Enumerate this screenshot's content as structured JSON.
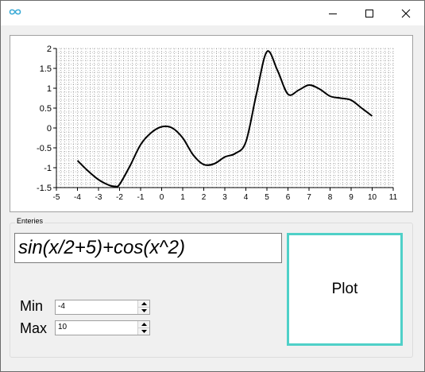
{
  "window": {
    "title": "",
    "icon": "infinity-icon"
  },
  "chart_data": {
    "type": "line",
    "title": "",
    "xlabel": "",
    "ylabel": "",
    "xlim": [
      -5,
      11
    ],
    "ylim": [
      -1.5,
      2
    ],
    "grid": true,
    "legend": "none",
    "x_ticks": [
      "-5",
      "-4",
      "-3",
      "-2",
      "-1",
      "0",
      "1",
      "2",
      "3",
      "4",
      "5",
      "6",
      "7",
      "8",
      "9",
      "10",
      "11"
    ],
    "y_ticks": [
      "-1.5",
      "-1",
      "-0.5",
      "0",
      "0.5",
      "1",
      "1.5",
      "2"
    ],
    "series": [
      {
        "color": "#000000",
        "x": [
          -4,
          -3.5,
          -3,
          -2.5,
          -2.2,
          -2,
          -1.5,
          -1,
          -0.5,
          0,
          0.5,
          1,
          1.5,
          2,
          2.5,
          3,
          3.5,
          4,
          4.5,
          5,
          5.5,
          6,
          6.5,
          7,
          7.5,
          8,
          8.5,
          9,
          9.5,
          10
        ],
        "y": [
          -0.82,
          -1.08,
          -1.3,
          -1.44,
          -1.47,
          -1.42,
          -0.95,
          -0.42,
          -0.12,
          0.03,
          0.0,
          -0.25,
          -0.68,
          -0.92,
          -0.9,
          -0.73,
          -0.64,
          -0.35,
          0.85,
          1.92,
          1.45,
          0.85,
          0.95,
          1.08,
          0.98,
          0.8,
          0.75,
          0.7,
          0.5,
          0.3
        ]
      }
    ]
  },
  "entries": {
    "group_label": "Enteries",
    "expression": "sin(x/2+5)+cos(x^2)",
    "min_label": "Min",
    "min_value": "-4",
    "max_label": "Max",
    "max_value": "10",
    "plot_label": "Plot",
    "accent": "#4fd0c8"
  }
}
